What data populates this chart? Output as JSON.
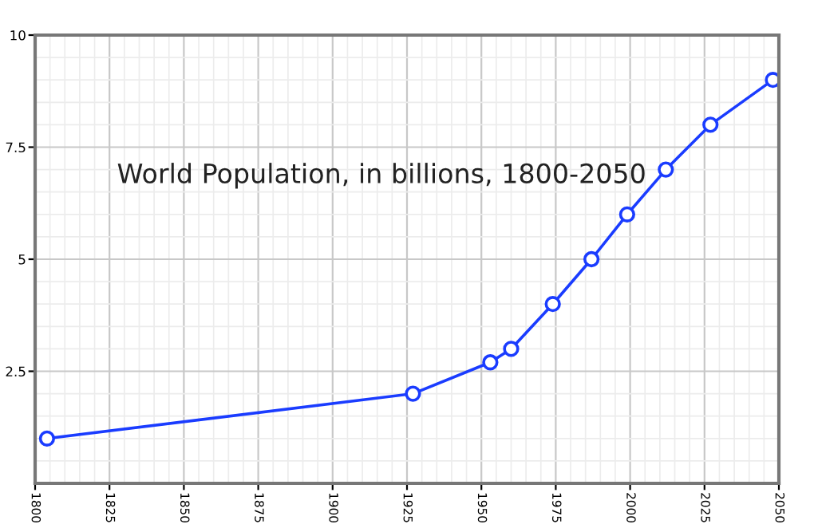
{
  "chart_data": {
    "type": "line",
    "title": "World Population, in billions, 1800-2050",
    "x": [
      1804,
      1927,
      1953,
      1960,
      1974,
      1987,
      1999,
      2012,
      2027,
      2048
    ],
    "series": [
      {
        "color": "#1a3cff",
        "values": [
          1,
          2,
          2.7,
          3,
          4,
          5,
          6,
          7,
          8,
          9
        ]
      }
    ],
    "xlim": [
      1800,
      2050
    ],
    "xticks": [
      1800,
      1825,
      1850,
      1875,
      1900,
      1925,
      1950,
      1975,
      2000,
      2025,
      2050
    ],
    "ylim": [
      0,
      10
    ],
    "yticks": [
      2.5,
      5,
      7.5,
      10
    ],
    "grid": true,
    "marker": "circle",
    "line_style": "solid"
  }
}
